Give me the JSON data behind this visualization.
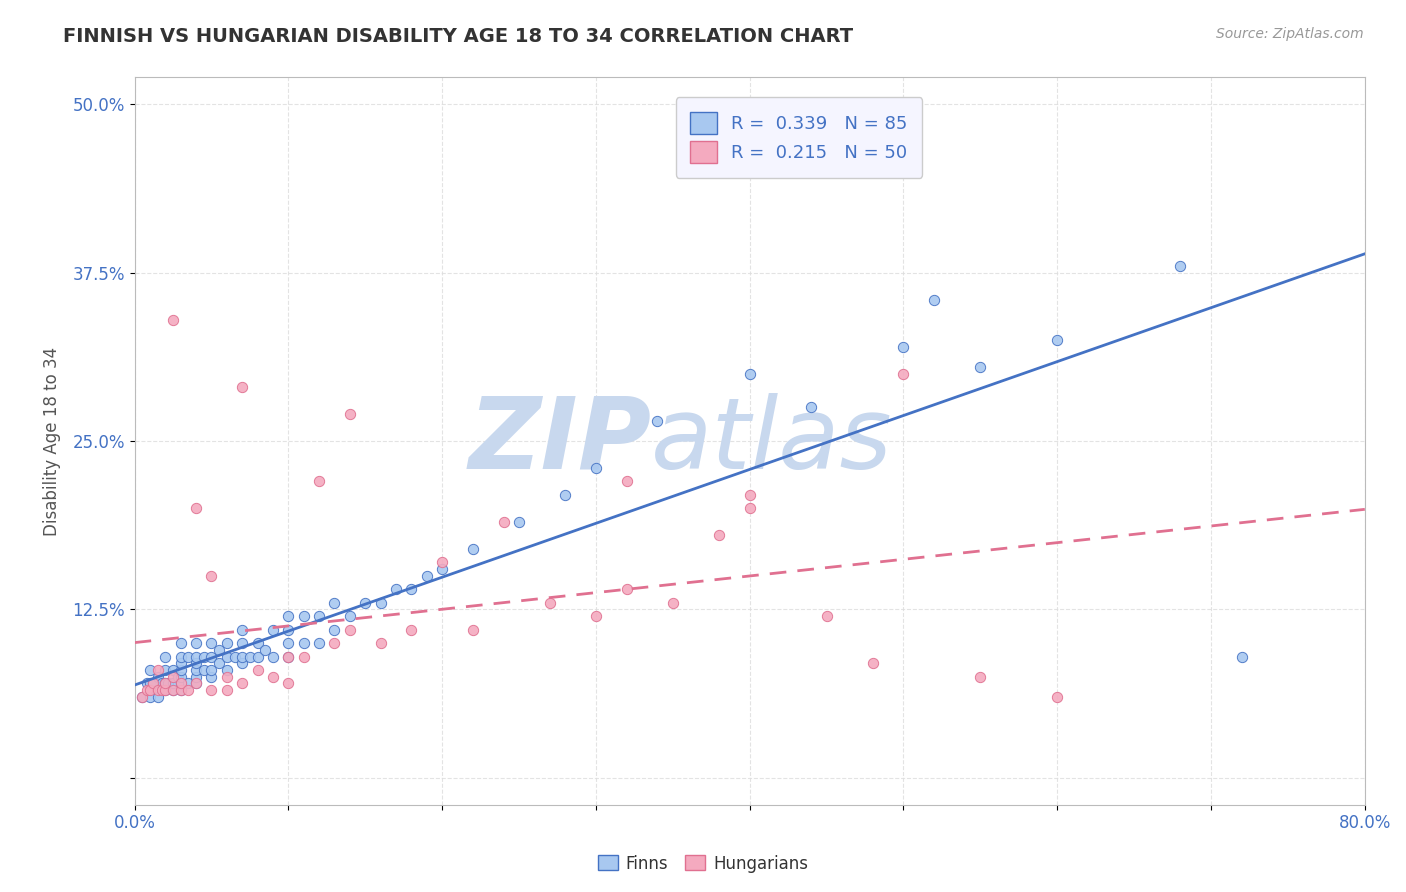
{
  "title": "FINNISH VS HUNGARIAN DISABILITY AGE 18 TO 34 CORRELATION CHART",
  "source": "Source: ZipAtlas.com",
  "ylabel": "Disability Age 18 to 34",
  "xlim": [
    0.0,
    0.8
  ],
  "ylim": [
    -0.02,
    0.52
  ],
  "xticks": [
    0.0,
    0.1,
    0.2,
    0.3,
    0.4,
    0.5,
    0.6,
    0.7,
    0.8
  ],
  "xticklabels": [
    "0.0%",
    "",
    "",
    "",
    "",
    "",
    "",
    "",
    "80.0%"
  ],
  "yticks": [
    0.0,
    0.125,
    0.25,
    0.375,
    0.5
  ],
  "yticklabels": [
    "",
    "12.5%",
    "25.0%",
    "37.5%",
    "50.0%"
  ],
  "finns_R": 0.339,
  "finns_N": 85,
  "hungarians_R": 0.215,
  "hungarians_N": 50,
  "finns_color": "#A8C8F0",
  "hungarians_color": "#F4AABF",
  "finns_line_color": "#4472C4",
  "hungarians_line_color": "#E07090",
  "watermark_zip": "ZIP",
  "watermark_atlas": "atlas",
  "watermark_color": "#C8D8EE",
  "background_color": "#FFFFFF",
  "grid_color": "#DDDDDD",
  "legend_box_color": "#F5F5FF",
  "finns_x": [
    0.005,
    0.008,
    0.01,
    0.01,
    0.01,
    0.012,
    0.015,
    0.015,
    0.018,
    0.02,
    0.02,
    0.02,
    0.02,
    0.022,
    0.025,
    0.025,
    0.025,
    0.028,
    0.03,
    0.03,
    0.03,
    0.03,
    0.03,
    0.03,
    0.03,
    0.035,
    0.035,
    0.04,
    0.04,
    0.04,
    0.04,
    0.04,
    0.04,
    0.045,
    0.045,
    0.05,
    0.05,
    0.05,
    0.05,
    0.055,
    0.055,
    0.06,
    0.06,
    0.06,
    0.065,
    0.07,
    0.07,
    0.07,
    0.07,
    0.075,
    0.08,
    0.08,
    0.085,
    0.09,
    0.09,
    0.1,
    0.1,
    0.1,
    0.1,
    0.11,
    0.11,
    0.12,
    0.12,
    0.13,
    0.13,
    0.14,
    0.15,
    0.16,
    0.17,
    0.18,
    0.19,
    0.2,
    0.22,
    0.25,
    0.28,
    0.3,
    0.34,
    0.4,
    0.44,
    0.5,
    0.52,
    0.55,
    0.6,
    0.68,
    0.72
  ],
  "finns_y": [
    0.06,
    0.07,
    0.06,
    0.07,
    0.08,
    0.07,
    0.06,
    0.075,
    0.07,
    0.065,
    0.07,
    0.08,
    0.09,
    0.07,
    0.065,
    0.07,
    0.08,
    0.075,
    0.065,
    0.07,
    0.075,
    0.08,
    0.085,
    0.09,
    0.1,
    0.07,
    0.09,
    0.07,
    0.075,
    0.08,
    0.085,
    0.09,
    0.1,
    0.08,
    0.09,
    0.075,
    0.08,
    0.09,
    0.1,
    0.085,
    0.095,
    0.08,
    0.09,
    0.1,
    0.09,
    0.085,
    0.09,
    0.1,
    0.11,
    0.09,
    0.09,
    0.1,
    0.095,
    0.09,
    0.11,
    0.09,
    0.1,
    0.11,
    0.12,
    0.1,
    0.12,
    0.1,
    0.12,
    0.11,
    0.13,
    0.12,
    0.13,
    0.13,
    0.14,
    0.14,
    0.15,
    0.155,
    0.17,
    0.19,
    0.21,
    0.23,
    0.265,
    0.3,
    0.275,
    0.32,
    0.355,
    0.305,
    0.325,
    0.38,
    0.09
  ],
  "hungarians_x": [
    0.005,
    0.008,
    0.01,
    0.012,
    0.015,
    0.015,
    0.018,
    0.02,
    0.02,
    0.025,
    0.025,
    0.03,
    0.03,
    0.035,
    0.04,
    0.04,
    0.05,
    0.05,
    0.06,
    0.06,
    0.07,
    0.07,
    0.08,
    0.09,
    0.1,
    0.1,
    0.11,
    0.12,
    0.13,
    0.14,
    0.16,
    0.18,
    0.2,
    0.22,
    0.24,
    0.27,
    0.3,
    0.32,
    0.35,
    0.38,
    0.4,
    0.45,
    0.48,
    0.5,
    0.55,
    0.6,
    0.025,
    0.14,
    0.32,
    0.4
  ],
  "hungarians_y": [
    0.06,
    0.065,
    0.065,
    0.07,
    0.065,
    0.08,
    0.065,
    0.065,
    0.07,
    0.065,
    0.075,
    0.065,
    0.07,
    0.065,
    0.07,
    0.2,
    0.065,
    0.15,
    0.065,
    0.075,
    0.07,
    0.29,
    0.08,
    0.075,
    0.07,
    0.09,
    0.09,
    0.22,
    0.1,
    0.11,
    0.1,
    0.11,
    0.16,
    0.11,
    0.19,
    0.13,
    0.12,
    0.14,
    0.13,
    0.18,
    0.2,
    0.12,
    0.085,
    0.3,
    0.075,
    0.06,
    0.34,
    0.27,
    0.22,
    0.21
  ]
}
